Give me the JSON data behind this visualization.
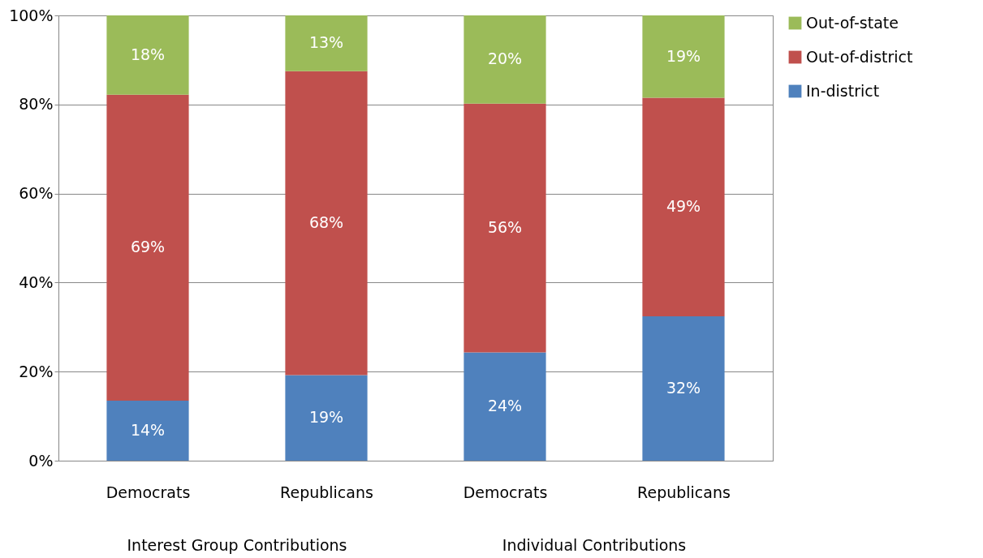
{
  "chart_data": {
    "type": "bar",
    "stacked": true,
    "categories": [
      "Democrats",
      "Republicans",
      "Democrats",
      "Republicans"
    ],
    "series": [
      {
        "name": "In-district",
        "color": "#4f81bd",
        "values": [
          13.5,
          19.2,
          24.3,
          32.4
        ],
        "value_labels": [
          "14%",
          "19%",
          "24%",
          "32%"
        ]
      },
      {
        "name": "Out-of-district",
        "color": "#c0504d",
        "values": [
          68.7,
          68.3,
          55.9,
          49.1
        ],
        "value_labels": [
          "69%",
          "68%",
          "56%",
          "49%"
        ]
      },
      {
        "name": "Out-of-state",
        "color": "#9bbb59",
        "values": [
          17.8,
          12.5,
          19.8,
          18.5
        ],
        "value_labels": [
          "18%",
          "13%",
          "20%",
          "19%"
        ]
      }
    ],
    "annotations": [
      "Interest Group Contributions",
      "Individual Contributions"
    ],
    "ylim": [
      0,
      100
    ],
    "yticks": [
      {
        "value": 0,
        "label": "0%"
      },
      {
        "value": 20,
        "label": "20%"
      },
      {
        "value": 40,
        "label": "40%"
      },
      {
        "value": 60,
        "label": "60%"
      },
      {
        "value": 80,
        "label": "80%"
      },
      {
        "value": 100,
        "label": "100%"
      }
    ],
    "grid": "y",
    "legend": "right"
  }
}
